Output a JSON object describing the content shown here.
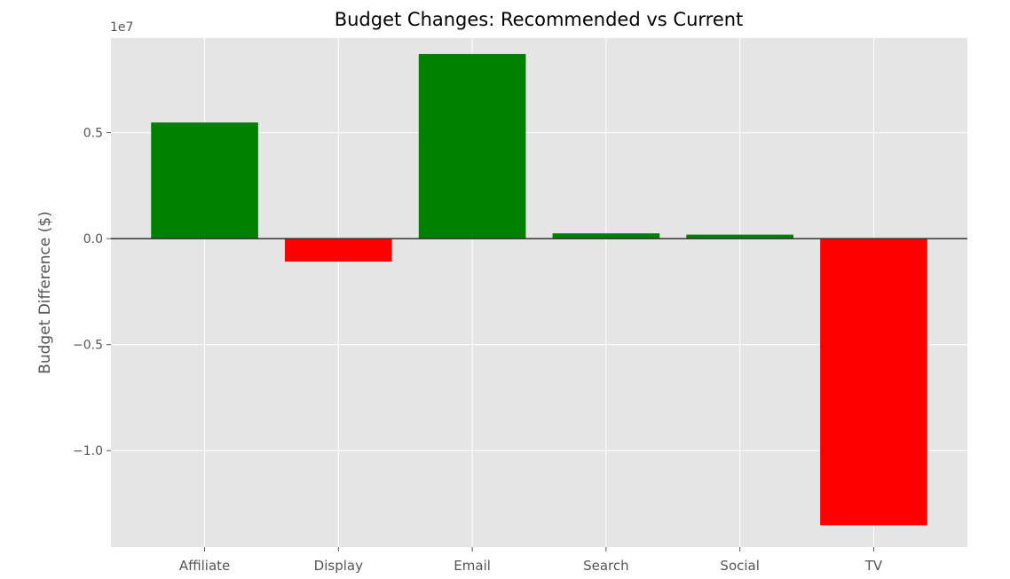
{
  "chart_data": {
    "type": "bar",
    "title": "Budget Changes: Recommended vs Current",
    "xlabel": "",
    "ylabel": "Budget Difference ($)",
    "offset_label": "1e7",
    "categories": [
      "Affiliate",
      "Display",
      "Email",
      "Search",
      "Social",
      "TV"
    ],
    "values": [
      5480000,
      -1080000,
      8710000,
      250000,
      190000,
      -13520000
    ],
    "bar_colors": [
      "#008000",
      "#ff0000",
      "#008000",
      "#008000",
      "#008000",
      "#ff0000"
    ],
    "ylim": [
      -14550000,
      9460000
    ],
    "yticks": [
      {
        "value": -10000000,
        "label": "−1.0"
      },
      {
        "value": -5000000,
        "label": "−0.5"
      },
      {
        "value": 0,
        "label": "0.0"
      },
      {
        "value": 5000000,
        "label": "0.5"
      }
    ],
    "zero_line": true,
    "grid": true,
    "colors": {
      "plot_background": "#e5e5e5",
      "grid": "#ffffff",
      "text": "#555555",
      "title": "#000000",
      "zero_line": "#333333"
    }
  }
}
